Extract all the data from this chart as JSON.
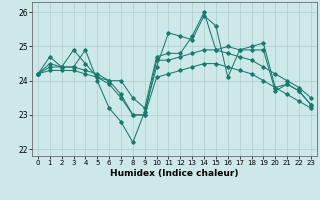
{
  "title": "",
  "xlabel": "Humidex (Indice chaleur)",
  "xlim": [
    -0.5,
    23.5
  ],
  "ylim": [
    21.8,
    26.3
  ],
  "yticks": [
    22,
    23,
    24,
    25,
    26
  ],
  "xticks": [
    0,
    1,
    2,
    3,
    4,
    5,
    6,
    7,
    8,
    9,
    10,
    11,
    12,
    13,
    14,
    15,
    16,
    17,
    18,
    19,
    20,
    21,
    22,
    23
  ],
  "bg_color": "#cce8e8",
  "line_color": "#1a7a6e",
  "grid_color": "#b0cccc",
  "lines_actual": [
    {
      "x": [
        0,
        1,
        2,
        3,
        4,
        5,
        6,
        7,
        8,
        9,
        10,
        11,
        12,
        13,
        14,
        15,
        16,
        17,
        18,
        19,
        20,
        21,
        22,
        23
      ],
      "y": [
        24.2,
        24.7,
        24.4,
        24.4,
        24.9,
        24.0,
        23.2,
        22.8,
        22.2,
        23.1,
        24.4,
        25.4,
        25.3,
        25.2,
        25.9,
        25.6,
        24.1,
        24.9,
        24.9,
        24.9,
        23.7,
        23.9,
        23.7,
        23.3
      ]
    },
    {
      "x": [
        0,
        1,
        2,
        3,
        4,
        5,
        6,
        7,
        8,
        9,
        10,
        11,
        12,
        13,
        14,
        15,
        16,
        17,
        18,
        19,
        20,
        21,
        22,
        23
      ],
      "y": [
        24.2,
        24.5,
        24.4,
        24.9,
        24.5,
        24.1,
        24.0,
        24.0,
        23.5,
        23.2,
        24.7,
        24.8,
        24.8,
        25.3,
        26.0,
        24.9,
        25.0,
        24.9,
        25.0,
        25.1,
        23.8,
        23.9,
        23.7,
        23.3
      ]
    },
    {
      "x": [
        0,
        1,
        2,
        3,
        4,
        5,
        6,
        7,
        8,
        9,
        10,
        11,
        12,
        13,
        14,
        15,
        16,
        17,
        18,
        19,
        20,
        21,
        22,
        23
      ],
      "y": [
        24.2,
        24.4,
        24.4,
        24.4,
        24.3,
        24.2,
        24.0,
        23.6,
        23.0,
        23.0,
        24.6,
        24.6,
        24.7,
        24.8,
        24.9,
        24.9,
        24.8,
        24.7,
        24.6,
        24.4,
        24.2,
        24.0,
        23.8,
        23.5
      ]
    },
    {
      "x": [
        0,
        1,
        2,
        3,
        4,
        5,
        6,
        7,
        8,
        9,
        10,
        11,
        12,
        13,
        14,
        15,
        16,
        17,
        18,
        19,
        20,
        21,
        22,
        23
      ],
      "y": [
        24.2,
        24.3,
        24.3,
        24.3,
        24.2,
        24.1,
        23.9,
        23.5,
        23.0,
        23.0,
        24.1,
        24.2,
        24.3,
        24.4,
        24.5,
        24.5,
        24.4,
        24.3,
        24.2,
        24.0,
        23.8,
        23.6,
        23.4,
        23.2
      ]
    }
  ]
}
